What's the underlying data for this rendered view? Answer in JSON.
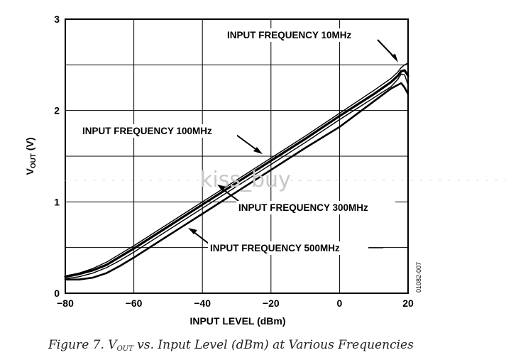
{
  "chart_data": {
    "type": "line",
    "xlabel": "INPUT LEVEL (dBm)",
    "ylabel": {
      "main": "V",
      "sub": "OUT",
      "unit": " (V)"
    },
    "xlim": [
      -80,
      20
    ],
    "ylim": [
      0,
      3
    ],
    "xticks": [
      "−80",
      "−60",
      "−40",
      "−20",
      "0",
      "20"
    ],
    "xtick_values": [
      -80,
      -60,
      -40,
      -20,
      0,
      20
    ],
    "yticks": [
      "0",
      "1",
      "2",
      "3"
    ],
    "ytick_values": [
      0,
      1,
      2,
      3
    ],
    "grid": true,
    "series": [
      {
        "name": "INPUT FREQUENCY 10MHz",
        "x": [
          -80,
          -76,
          -72,
          -68,
          -64,
          -60,
          -50,
          -40,
          -30,
          -20,
          -10,
          0,
          10,
          15,
          17,
          18,
          19,
          20
        ],
        "y": [
          0.19,
          0.22,
          0.27,
          0.34,
          0.43,
          0.52,
          0.76,
          1.0,
          1.24,
          1.48,
          1.72,
          1.97,
          2.22,
          2.35,
          2.42,
          2.47,
          2.5,
          2.52
        ]
      },
      {
        "name": "INPUT FREQUENCY 100MHz",
        "x": [
          -80,
          -76,
          -72,
          -68,
          -64,
          -60,
          -50,
          -40,
          -30,
          -20,
          -10,
          0,
          10,
          15,
          17,
          18,
          19,
          20
        ],
        "y": [
          0.18,
          0.21,
          0.25,
          0.31,
          0.4,
          0.49,
          0.73,
          0.97,
          1.21,
          1.45,
          1.69,
          1.94,
          2.18,
          2.31,
          2.38,
          2.43,
          2.44,
          2.38
        ]
      },
      {
        "name": "INPUT FREQUENCY 300MHz",
        "x": [
          -80,
          -76,
          -72,
          -68,
          -64,
          -60,
          -50,
          -40,
          -30,
          -20,
          -10,
          0,
          10,
          15,
          17,
          18,
          19,
          20
        ],
        "y": [
          0.16,
          0.18,
          0.22,
          0.28,
          0.36,
          0.45,
          0.69,
          0.93,
          1.17,
          1.41,
          1.65,
          1.9,
          2.14,
          2.26,
          2.34,
          2.4,
          2.39,
          2.28
        ]
      },
      {
        "name": "INPUT FREQUENCY 500MHz",
        "x": [
          -80,
          -76,
          -72,
          -68,
          -64,
          -60,
          -50,
          -40,
          -30,
          -20,
          -10,
          0,
          10,
          15,
          17,
          18,
          19,
          20
        ],
        "y": [
          0.15,
          0.15,
          0.17,
          0.22,
          0.3,
          0.39,
          0.63,
          0.87,
          1.11,
          1.35,
          1.59,
          1.82,
          2.1,
          2.24,
          2.28,
          2.3,
          2.25,
          2.18
        ]
      }
    ],
    "annotations": [
      "INPUT FREQUENCY 10MHz",
      "INPUT FREQUENCY 100MHz",
      "INPUT FREQUENCY 300MHz",
      "INPUT FREQUENCY 500MHz"
    ],
    "figure_code": "01082-007"
  },
  "watermark": "kiss_buy",
  "caption": {
    "prefix": "Figure 7. V",
    "sub": "OUT",
    "suffix": " vs. Input Level (dBm) at Various Frequencies"
  }
}
